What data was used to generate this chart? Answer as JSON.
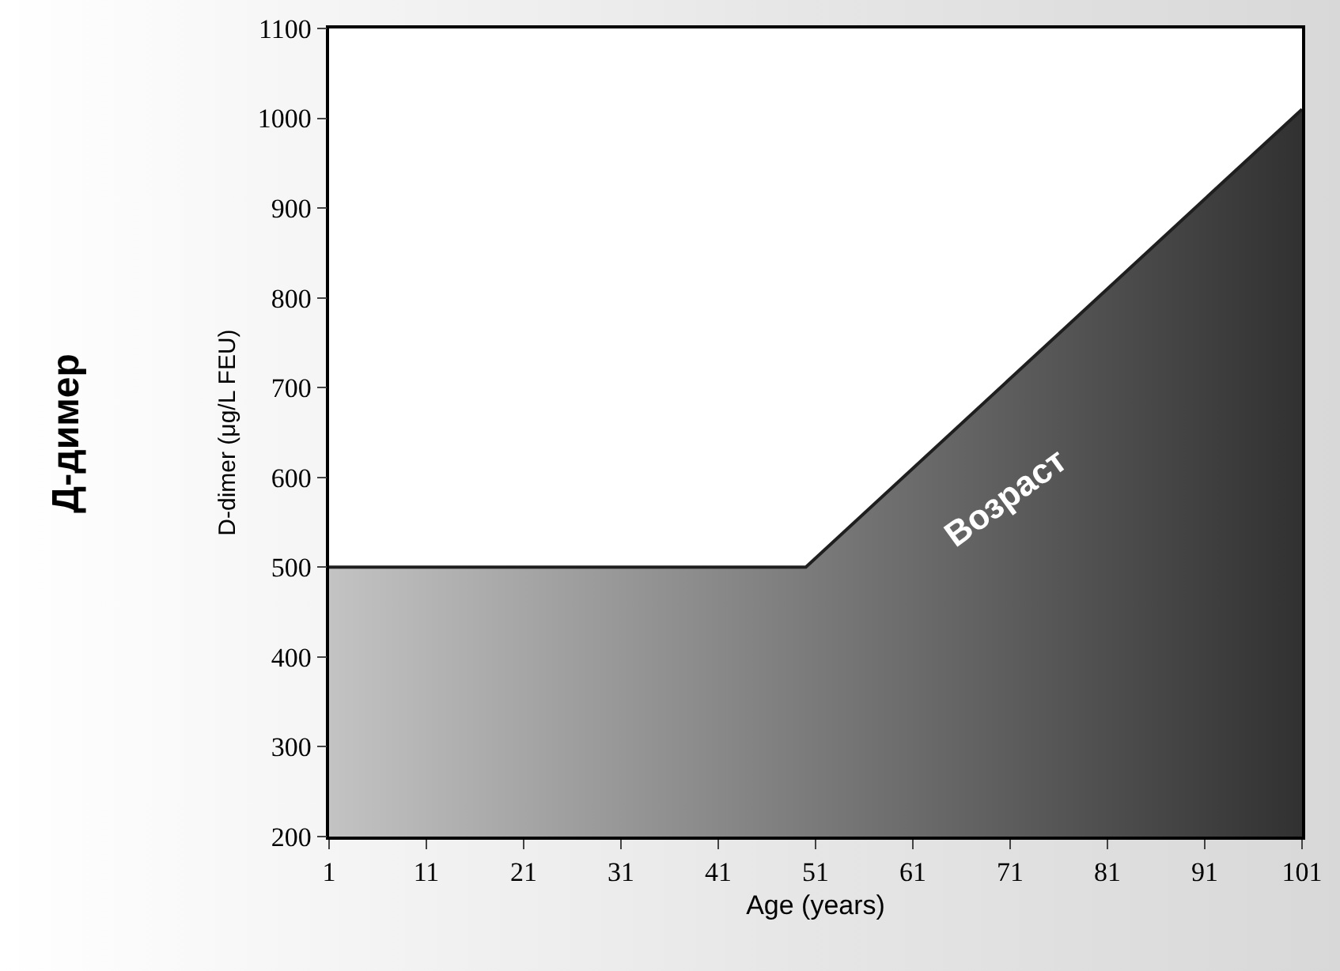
{
  "chart_data": {
    "type": "area",
    "xlabel": "Age (years)",
    "ylabel": "D-dimer (μg/L FEU)",
    "x": [
      1,
      50,
      101
    ],
    "series": [
      {
        "color": "#7a7a7a",
        "values": [
          500,
          500,
          1010
        ]
      }
    ],
    "xlim": [
      1,
      101
    ],
    "xticks": [
      1,
      11,
      21,
      31,
      41,
      51,
      61,
      71,
      81,
      91,
      101
    ],
    "ylim": [
      200,
      1100
    ],
    "yticks": [
      200,
      300,
      400,
      500,
      600,
      700,
      800,
      900,
      1000,
      1100
    ],
    "grid": false,
    "annotations": [
      "Возраст",
      "Д-димер"
    ]
  }
}
